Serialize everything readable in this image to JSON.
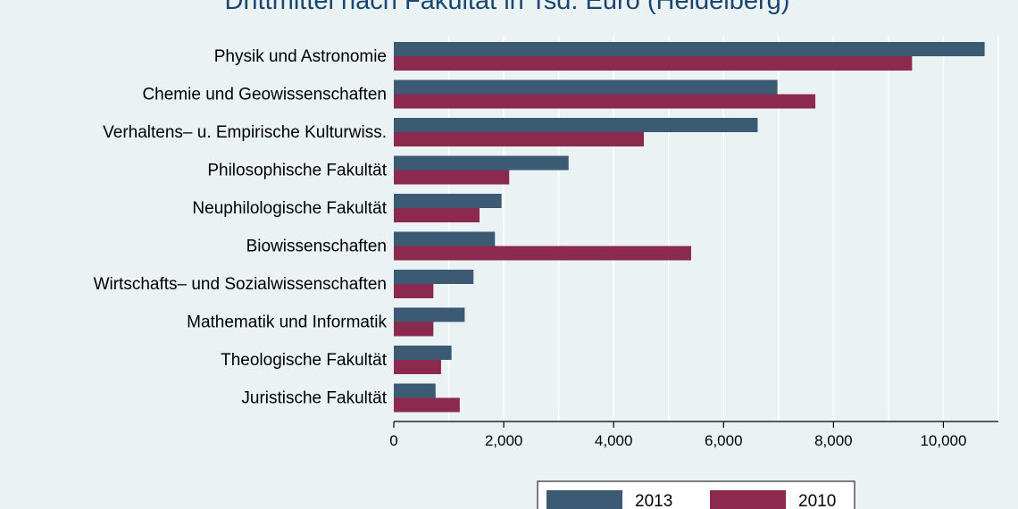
{
  "chart_data": {
    "type": "bar",
    "orientation": "horizontal",
    "title": "Drittmittel nach Fakultät in Tsd. Euro (Heidelberg)",
    "categories": [
      "Physik und Astronomie",
      "Chemie und Geowissenschaften",
      "Verhaltens– u. Empirische Kulturwiss.",
      "Philosophische Fakultät",
      "Neuphilologische Fakultät",
      "Biowissenschaften",
      "Wirtschafts– und Sozialwissenschaften",
      "Mathematik und Informatik",
      "Theologische Fakultät",
      "Juristische Fakultät"
    ],
    "series": [
      {
        "name": "2013",
        "color": "#3d5a74",
        "values": [
          10750,
          6980,
          6620,
          3180,
          1960,
          1840,
          1450,
          1290,
          1050,
          760
        ]
      },
      {
        "name": "2010",
        "color": "#8b2a4e",
        "values": [
          9430,
          7670,
          4550,
          2100,
          1560,
          5410,
          720,
          720,
          860,
          1200
        ]
      }
    ],
    "xlim": [
      0,
      11000
    ],
    "xticks": [
      0,
      2000,
      4000,
      6000,
      8000,
      10000
    ],
    "xtick_labels": [
      "0",
      "2,000",
      "4,000",
      "6,000",
      "8,000",
      "10,000"
    ],
    "grid": true,
    "legend_position": "bottom"
  }
}
